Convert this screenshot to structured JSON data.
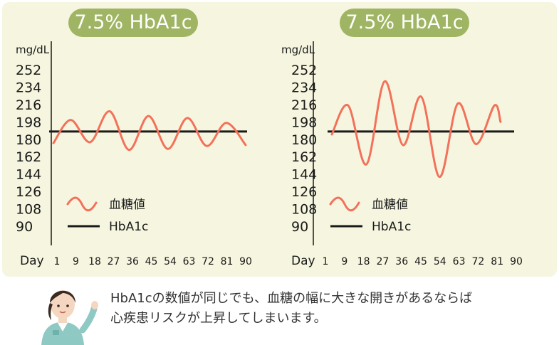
{
  "colors": {
    "panel_bg": "#f6f6e0",
    "title_bg": "#9fb563",
    "glucose_line": "#f3715a",
    "hba1c_line": "#1a1a1a"
  },
  "chart_data": [
    {
      "type": "line",
      "title": "7.5% HbA1c",
      "ylabel": "mg/dL",
      "xlabel": "Day",
      "y_ticks": [
        "252",
        "234",
        "216",
        "198",
        "180",
        "162",
        "144",
        "126",
        "108",
        "90"
      ],
      "x_ticks": [
        "1",
        "9",
        "18",
        "27",
        "36",
        "45",
        "54",
        "63",
        "72",
        "81",
        "90"
      ],
      "ylim": [
        90,
        252
      ],
      "xlim": [
        1,
        90
      ],
      "hba1c_level": 188,
      "legend": [
        "血糖値",
        "HbA1c"
      ],
      "legend_position": "bottom-left",
      "series": [
        {
          "name": "血糖値",
          "x": [
            1,
            9,
            18,
            27,
            36,
            45,
            54,
            63,
            72,
            81,
            90
          ],
          "y": [
            176,
            200,
            177,
            209,
            169,
            204,
            170,
            202,
            173,
            197,
            174
          ]
        },
        {
          "name": "HbA1c",
          "x": [
            1,
            90
          ],
          "y": [
            188,
            188
          ]
        }
      ]
    },
    {
      "type": "line",
      "title": "7.5% HbA1c",
      "ylabel": "mg/dL",
      "xlabel": "Day",
      "y_ticks": [
        "252",
        "234",
        "216",
        "198",
        "180",
        "162",
        "144",
        "126",
        "108",
        "90"
      ],
      "x_ticks": [
        "1",
        "9",
        "18",
        "27",
        "36",
        "45",
        "54",
        "63",
        "72",
        "81",
        "90"
      ],
      "ylim": [
        90,
        252
      ],
      "xlim": [
        1,
        90
      ],
      "hba1c_level": 188,
      "legend": [
        "血糖値",
        "HbA1c"
      ],
      "legend_position": "bottom-left",
      "series": [
        {
          "name": "血糖値",
          "x": [
            1,
            9,
            18,
            27,
            36,
            45,
            54,
            63,
            72,
            81,
            84
          ],
          "y": [
            185,
            215,
            154,
            240,
            174,
            224,
            141,
            217,
            175,
            215,
            198
          ]
        },
        {
          "name": "HbA1c",
          "x": [
            1,
            90
          ],
          "y": [
            188,
            188
          ]
        }
      ]
    }
  ],
  "caption": {
    "line1": "HbA1cの数値が同じでも、血糖の幅に大きな開きがあるならば",
    "line2": "心疾患リスクが上昇してしまいます。"
  }
}
